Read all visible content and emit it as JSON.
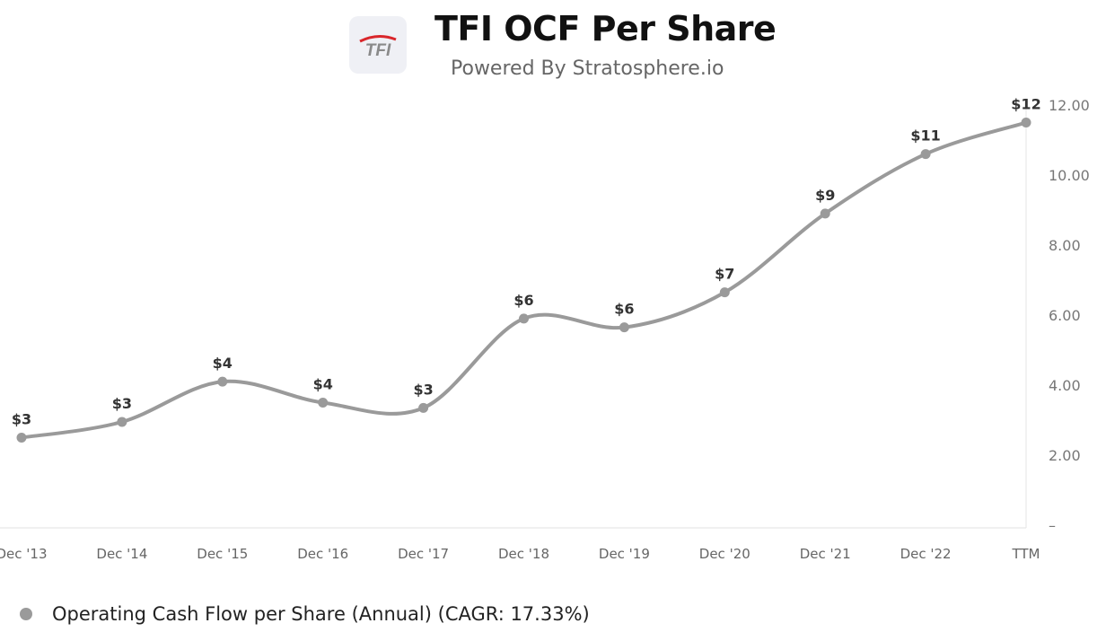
{
  "header": {
    "logo_text": "TFI",
    "title": "TFI OCF Per Share",
    "subtitle": "Powered By Stratosphere.io"
  },
  "colors": {
    "series": "#9a9a9a",
    "logo_red": "#d9262b",
    "logo_gray": "#8a8a8a"
  },
  "chart_data": {
    "type": "line",
    "title": "TFI OCF Per Share",
    "categories": [
      "Dec '13",
      "Dec '14",
      "Dec '15",
      "Dec '16",
      "Dec '17",
      "Dec '18",
      "Dec '19",
      "Dec '20",
      "Dec '21",
      "Dec '22",
      "TTM"
    ],
    "series": [
      {
        "name": "Operating Cash Flow per Share (Annual) (CAGR: 17.33%)",
        "values": [
          2.5,
          2.95,
          4.1,
          3.5,
          3.35,
          5.9,
          5.65,
          6.65,
          8.9,
          10.6,
          11.5
        ],
        "labels": [
          "$3",
          "$3",
          "$4",
          "$4",
          "$3",
          "$6",
          "$6",
          "$7",
          "$9",
          "$11",
          "$12"
        ]
      }
    ],
    "yticks": [
      "–",
      "2.00",
      "4.00",
      "6.00",
      "8.00",
      "10.00",
      "12.00"
    ],
    "ytick_values": [
      0,
      2,
      4,
      6,
      8,
      10,
      12
    ],
    "ylim": [
      0,
      12
    ],
    "y_axis_position": "right",
    "grid": false,
    "legend_position": "bottom-left"
  }
}
